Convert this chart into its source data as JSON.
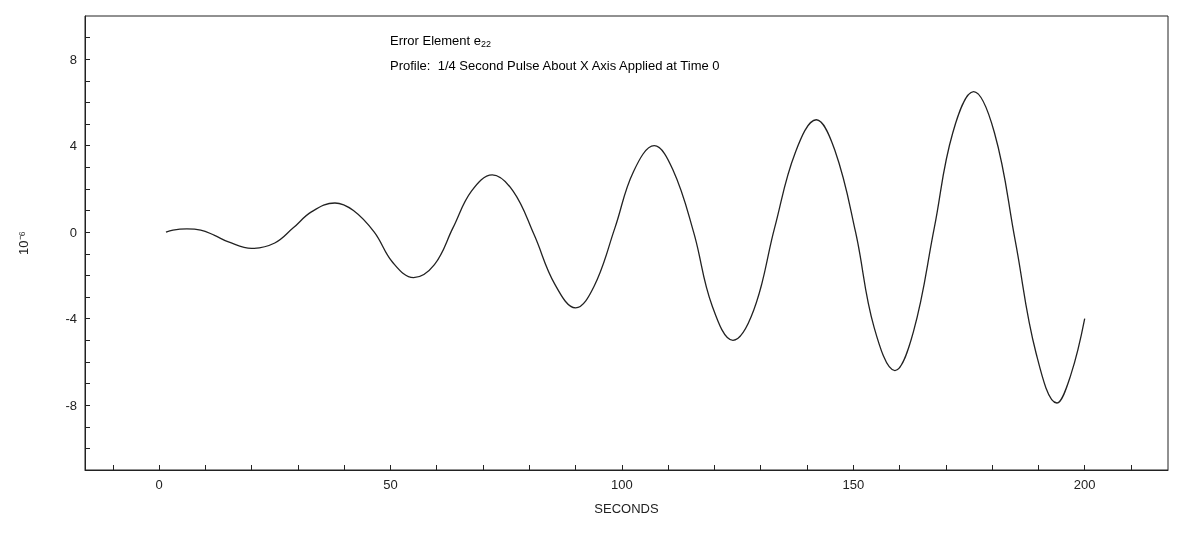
{
  "chart_data": {
    "type": "line",
    "xlabel": "SECONDS",
    "ylabel": "10⁻⁶",
    "annotations": [
      "Error Element e$_{22}$",
      "Profile:  1/4 Second Pulse About X Axis Applied at Time 0"
    ],
    "x": [
      1.5,
      3,
      6,
      9,
      12,
      15,
      20,
      25,
      29,
      33,
      38,
      42,
      46.5,
      50.5,
      55,
      59.5,
      63.5,
      67.5,
      72,
      76.5,
      81,
      85.5,
      90,
      94,
      98.5,
      102.5,
      107,
      111,
      115.5,
      119.5,
      124,
      128.5,
      133,
      137.5,
      142,
      146,
      150.5,
      154.5,
      159,
      163,
      167.5,
      171.5,
      176,
      180.5,
      185,
      189.5,
      194,
      197,
      200
    ],
    "series": [
      {
        "color": "#222222",
        "values": [
          0,
          0.1,
          0.15,
          0.1,
          -0.15,
          -0.45,
          -0.75,
          -0.5,
          0.2,
          0.95,
          1.35,
          1.0,
          0,
          -1.4,
          -2.1,
          -1.5,
          0.2,
          1.9,
          2.65,
          1.9,
          -0.1,
          -2.4,
          -3.5,
          -2.5,
          0.2,
          2.8,
          4.0,
          2.9,
          0,
          -3.4,
          -5.0,
          -3.6,
          0.2,
          3.7,
          5.2,
          3.8,
          0,
          -4.4,
          -6.4,
          -4.6,
          0.2,
          4.6,
          6.5,
          4.6,
          -0.4,
          -5.6,
          -7.9,
          -6.6,
          -4.0
        ]
      }
    ],
    "xlim": [
      -16,
      218
    ],
    "xticks": [
      {
        "value": -10,
        "label": null
      },
      0,
      {
        "value": 10,
        "label": null
      },
      {
        "value": 20,
        "label": null
      },
      {
        "value": 30,
        "label": null
      },
      {
        "value": 40,
        "label": null
      },
      50,
      {
        "value": 60,
        "label": null
      },
      {
        "value": 70,
        "label": null
      },
      {
        "value": 80,
        "label": null
      },
      {
        "value": 90,
        "label": null
      },
      100,
      {
        "value": 110,
        "label": null
      },
      {
        "value": 120,
        "label": null
      },
      {
        "value": 130,
        "label": null
      },
      {
        "value": 140,
        "label": null
      },
      150,
      {
        "value": 160,
        "label": null
      },
      {
        "value": 170,
        "label": null
      },
      {
        "value": 180,
        "label": null
      },
      {
        "value": 190,
        "label": null
      },
      200,
      {
        "value": 210,
        "label": null
      }
    ],
    "ylim": [
      -11,
      10
    ],
    "yticks": [
      {
        "value": -10,
        "label": null
      },
      {
        "value": -9,
        "label": null
      },
      -8,
      {
        "value": -7,
        "label": null
      },
      {
        "value": -6,
        "label": null
      },
      {
        "value": -5,
        "label": null
      },
      -4,
      {
        "value": -3,
        "label": null
      },
      {
        "value": -2,
        "label": null
      },
      {
        "value": -1,
        "label": null
      },
      0,
      {
        "value": 1,
        "label": null
      },
      {
        "value": 2,
        "label": null
      },
      {
        "value": 3,
        "label": null
      },
      4,
      {
        "value": 5,
        "label": null
      },
      {
        "value": 6,
        "label": null
      },
      {
        "value": 7,
        "label": null
      },
      8,
      {
        "value": 9,
        "label": null
      }
    ],
    "marker": "none",
    "line_style": "solid"
  }
}
